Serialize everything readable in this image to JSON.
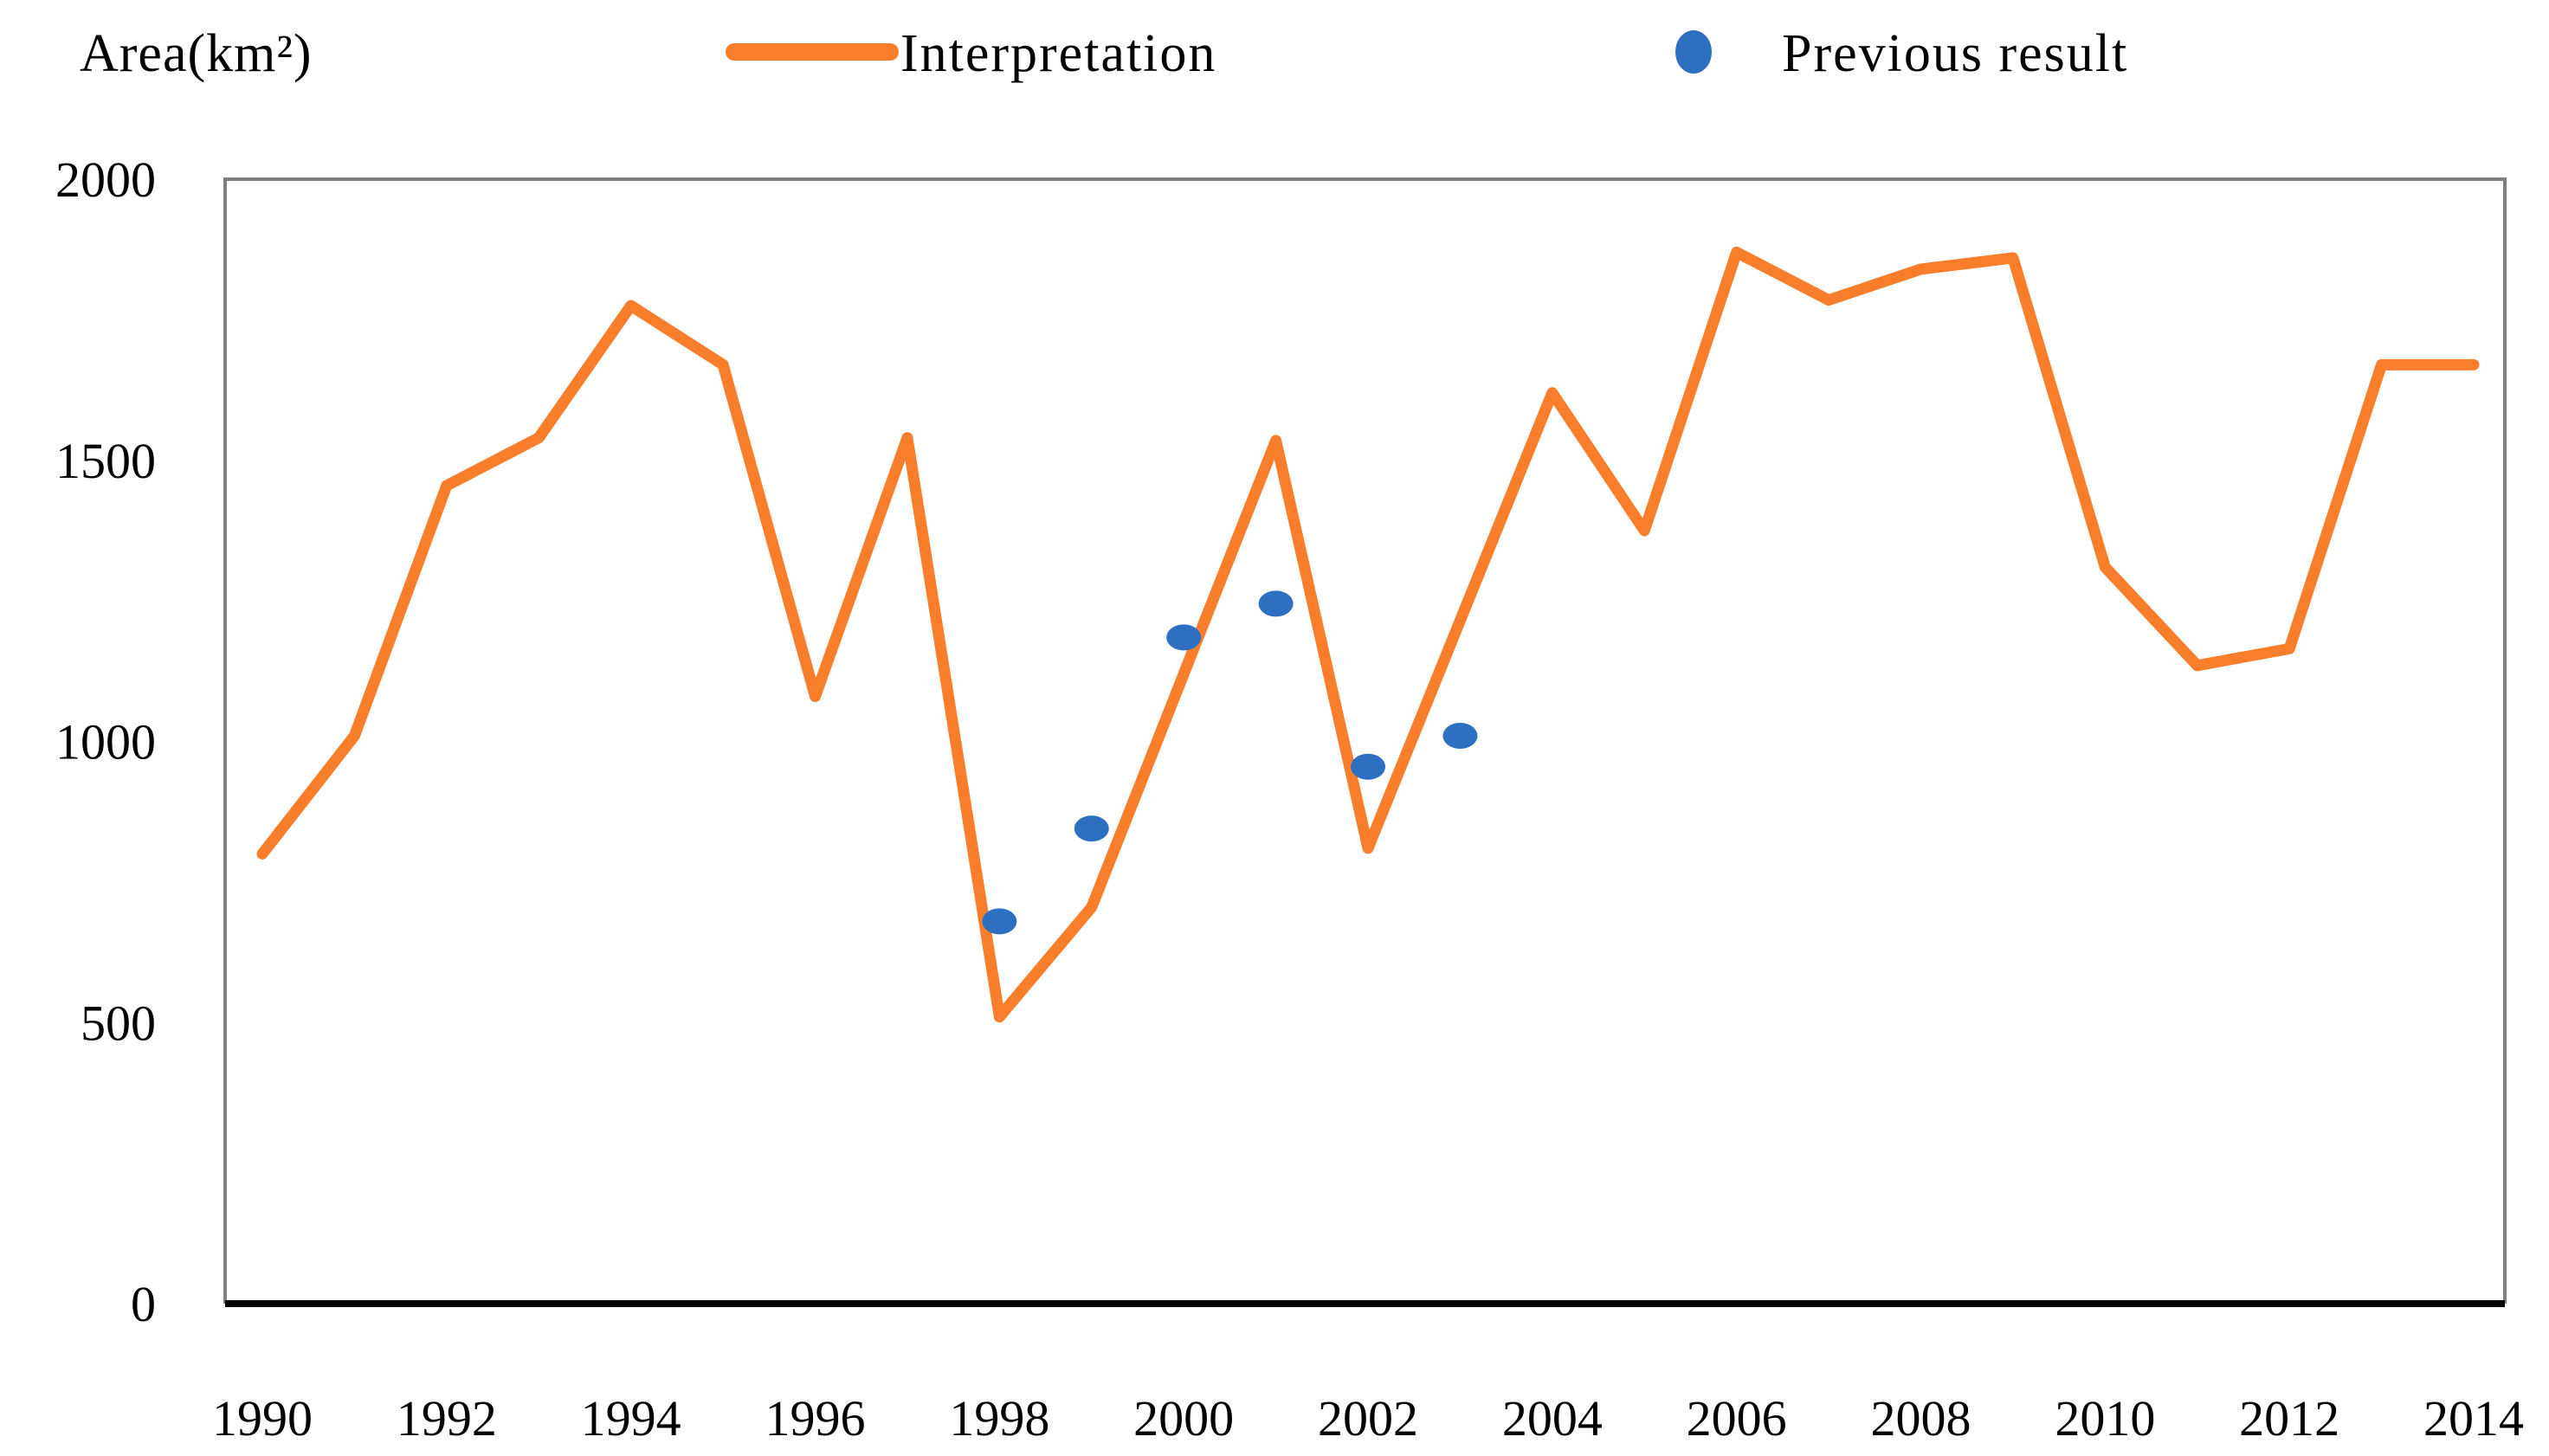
{
  "page": {
    "background": "#ffffff"
  },
  "y_axis_title": "Area(km²)",
  "legend": {
    "interpretation_label": "Interpretation",
    "previous_result_label": "Previous result"
  },
  "colors": {
    "line_series": "#f87e2b",
    "dot_series": "#2d6fc1",
    "plot_frame": "#7f7f7f",
    "x_axis_line": "#000000",
    "text": "#000000"
  },
  "chart_data": {
    "type": "line",
    "title": "",
    "xlabel": "",
    "ylabel": "Area(km²)",
    "ylim": [
      0,
      2000
    ],
    "y_ticks": [
      0,
      500,
      1000,
      1500,
      2000
    ],
    "x_tick_labels": [
      1990,
      1992,
      1994,
      1996,
      1998,
      2000,
      2002,
      2004,
      2006,
      2008,
      2010,
      2012,
      2014
    ],
    "x": [
      1990,
      1991,
      1992,
      1993,
      1994,
      1995,
      1996,
      1997,
      1998,
      1999,
      2000,
      2001,
      2002,
      2003,
      2004,
      2005,
      2006,
      2007,
      2008,
      2009,
      2010,
      2011,
      2012,
      2013,
      2014
    ],
    "grid": false,
    "legend_position": "top",
    "series": [
      {
        "name": "Interpretation",
        "type": "line",
        "color": "#f87e2b",
        "values": [
          800,
          1010,
          1455,
          1540,
          1775,
          1670,
          1080,
          1540,
          510,
          705,
          1120,
          1535,
          810,
          1215,
          1620,
          1375,
          1870,
          1785,
          1840,
          1860,
          1310,
          1135,
          1165,
          1670,
          1670
        ]
      },
      {
        "name": "Previous result",
        "type": "scatter",
        "color": "#2d6fc1",
        "points": [
          {
            "x": 1998,
            "y": 680
          },
          {
            "x": 1999,
            "y": 845
          },
          {
            "x": 2000,
            "y": 1185
          },
          {
            "x": 2001,
            "y": 1245
          },
          {
            "x": 2002,
            "y": 955
          },
          {
            "x": 2003,
            "y": 1010
          }
        ]
      }
    ]
  }
}
